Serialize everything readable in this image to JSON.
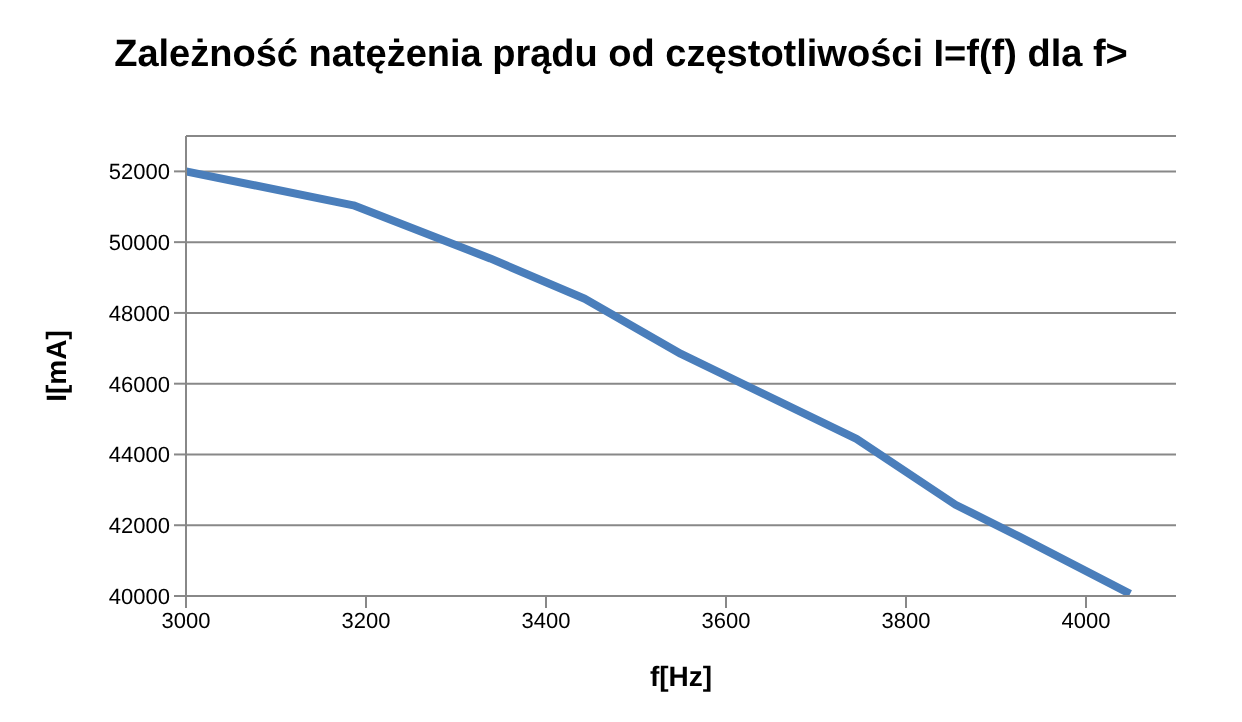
{
  "chart_data": {
    "type": "line",
    "title": "Zależność natężenia prądu od częstotliwości I=f(f) dla f>",
    "xlabel": "f[Hz]",
    "ylabel": "I[mA]",
    "x": [
      3000,
      3186,
      3338,
      3443,
      3550,
      3745,
      3855,
      3926,
      4049
    ],
    "series": [
      {
        "color": "#4a7ebb",
        "values": [
          52000,
          51040,
          49540,
          48400,
          46840,
          44440,
          42580,
          41680,
          40060
        ]
      }
    ],
    "xlim": [
      3000,
      4100
    ],
    "xticks": [
      3000,
      3200,
      3400,
      3600,
      3800,
      4000
    ],
    "ylim": [
      40000,
      53000
    ],
    "yticks": [
      40000,
      42000,
      44000,
      46000,
      48000,
      50000,
      52000
    ],
    "grid": "y",
    "legend": false
  }
}
